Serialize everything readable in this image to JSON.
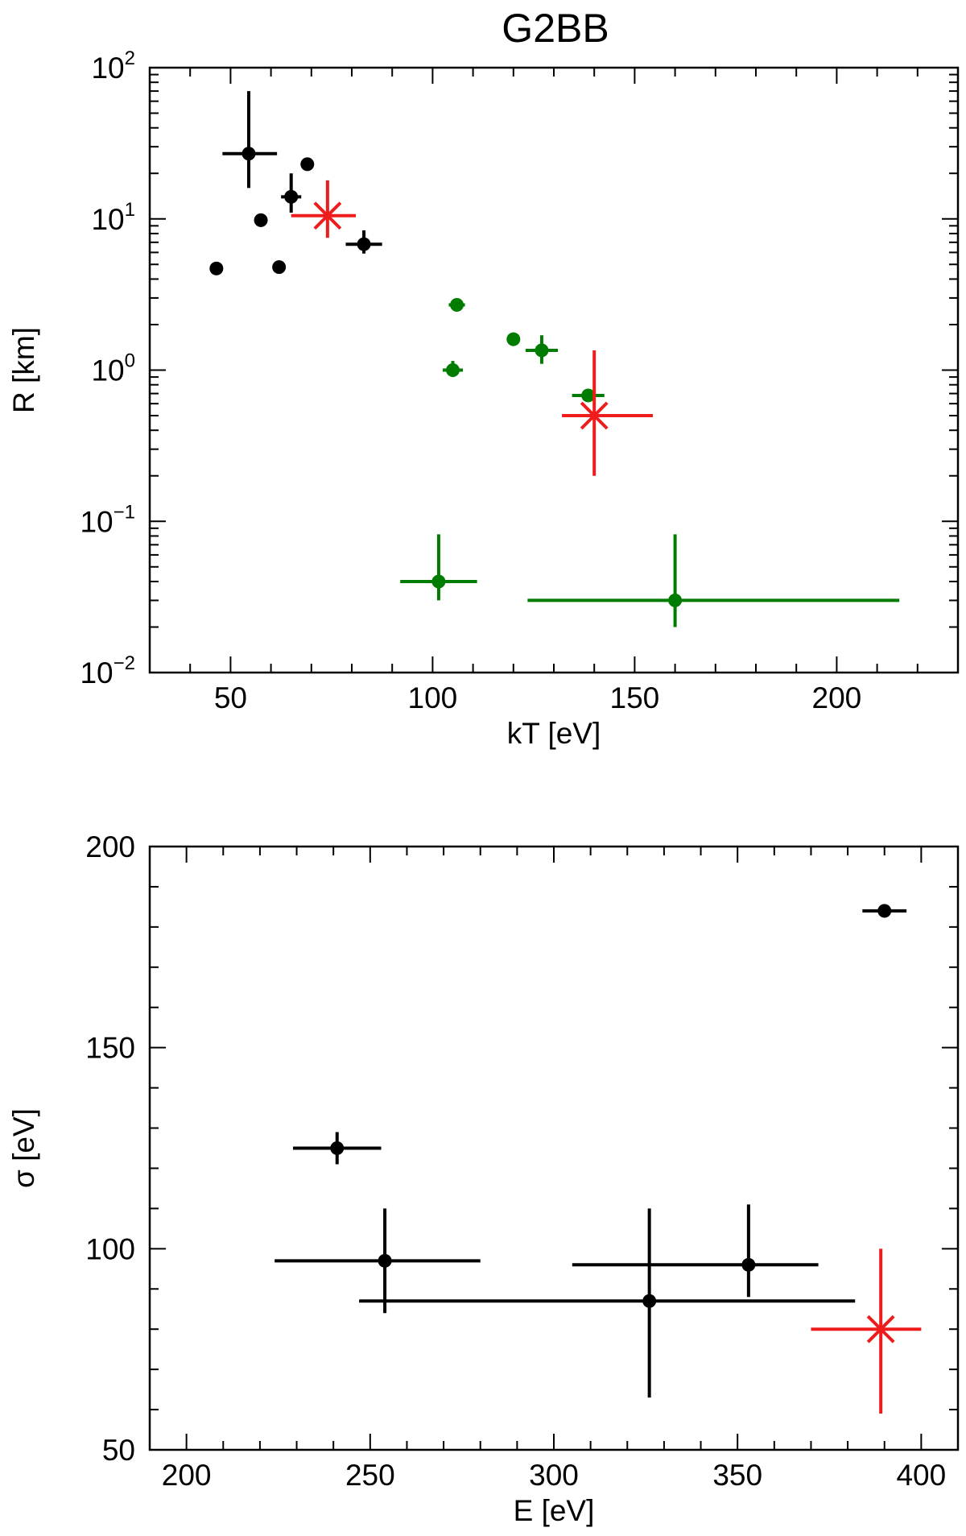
{
  "figure_title": "G2BB",
  "chart_data": [
    {
      "type": "scatter",
      "title": "G2BB",
      "xlabel": "kT  [eV]",
      "ylabel": "R  [km]",
      "xlim": [
        30,
        230
      ],
      "ylim": [
        0.01,
        100
      ],
      "yscale": "log",
      "xticks": [
        50,
        100,
        150,
        200
      ],
      "xtick_labels": [
        "50",
        "100",
        "150",
        "200"
      ],
      "yticks": [
        0.01,
        0.1,
        1,
        10,
        100
      ],
      "ytick_labels": [
        {
          "base": "10",
          "exp": "−2"
        },
        {
          "base": "10",
          "exp": "−1"
        },
        {
          "base": "10",
          "exp": "0"
        },
        {
          "base": "10",
          "exp": "1"
        },
        {
          "base": "10",
          "exp": "2"
        }
      ],
      "grid": false,
      "series": [
        {
          "color": "#000000",
          "marker": "circle",
          "points": [
            {
              "x": 46.5,
              "y": 4.7
            },
            {
              "x": 54.5,
              "y": 27,
              "xerr": [
                6.5,
                7
              ],
              "yerr": [
                11,
                43
              ]
            },
            {
              "x": 57.5,
              "y": 9.8
            },
            {
              "x": 62,
              "y": 4.8
            },
            {
              "x": 65,
              "y": 14,
              "xerr": [
                2.5,
                2.5
              ],
              "yerr": [
                3,
                6
              ]
            },
            {
              "x": 69,
              "y": 23
            },
            {
              "x": 83,
              "y": 6.8,
              "xerr": [
                4.5,
                4.5
              ],
              "yerr": [
                0.9,
                1.6
              ]
            }
          ]
        },
        {
          "color": "#007c00",
          "marker": "circle",
          "points": [
            {
              "x": 101.5,
              "y": 0.04,
              "xerr": [
                9.5,
                9.5
              ],
              "yerr": [
                0.01,
                0.042
              ]
            },
            {
              "x": 105,
              "y": 1.0,
              "xerr": [
                2.5,
                2.5
              ],
              "yerr": [
                0.1,
                0.15
              ]
            },
            {
              "x": 106,
              "y": 2.7,
              "xerr": [
                2,
                2
              ],
              "yerr": [
                0.2,
                0.2
              ]
            },
            {
              "x": 120,
              "y": 1.6
            },
            {
              "x": 127,
              "y": 1.35,
              "xerr": [
                4,
                4
              ],
              "yerr": [
                0.25,
                0.35
              ]
            },
            {
              "x": 138.5,
              "y": 0.68,
              "xerr": [
                4,
                4
              ],
              "yerr": [
                0.05,
                0.05
              ]
            },
            {
              "x": 160,
              "y": 0.03,
              "xerr": [
                36.5,
                55.5
              ],
              "yerr": [
                0.01,
                0.052
              ]
            }
          ]
        },
        {
          "color": "#ee1c1c",
          "marker": "x",
          "points": [
            {
              "x": 74,
              "y": 10.5,
              "xerr": [
                9,
                7
              ],
              "yerr": [
                3,
                7.5
              ]
            },
            {
              "x": 140,
              "y": 0.5,
              "xerr": [
                8,
                14.5
              ],
              "yerr": [
                0.3,
                0.85
              ]
            }
          ]
        }
      ]
    },
    {
      "type": "scatter",
      "title": "",
      "xlabel": "E  [eV]",
      "ylabel": "σ  [eV]",
      "xlim": [
        190,
        410
      ],
      "ylim": [
        50,
        200
      ],
      "yscale": "linear",
      "xticks": [
        200,
        250,
        300,
        350,
        400
      ],
      "xtick_labels": [
        "200",
        "250",
        "300",
        "350",
        "400"
      ],
      "yticks": [
        50,
        100,
        150,
        200
      ],
      "ytick_labels": [
        "50",
        "100",
        "150",
        "200"
      ],
      "grid": false,
      "series": [
        {
          "color": "#000000",
          "marker": "circle",
          "points": [
            {
              "x": 241,
              "y": 125,
              "xerr": [
                12,
                12
              ],
              "yerr": [
                4,
                4
              ]
            },
            {
              "x": 254,
              "y": 97,
              "xerr": [
                30,
                26
              ],
              "yerr": [
                13,
                13
              ]
            },
            {
              "x": 326,
              "y": 87,
              "xerr": [
                79,
                56
              ],
              "yerr": [
                24,
                23
              ]
            },
            {
              "x": 353,
              "y": 96,
              "xerr": [
                48,
                19
              ],
              "yerr": [
                8,
                15
              ]
            },
            {
              "x": 390,
              "y": 184,
              "xerr": [
                6,
                6
              ],
              "yerr": [
                1,
                1
              ]
            }
          ]
        },
        {
          "color": "#ee1c1c",
          "marker": "x",
          "points": [
            {
              "x": 389,
              "y": 80,
              "xerr": [
                19,
                11
              ],
              "yerr": [
                21,
                20
              ]
            }
          ]
        }
      ]
    }
  ]
}
